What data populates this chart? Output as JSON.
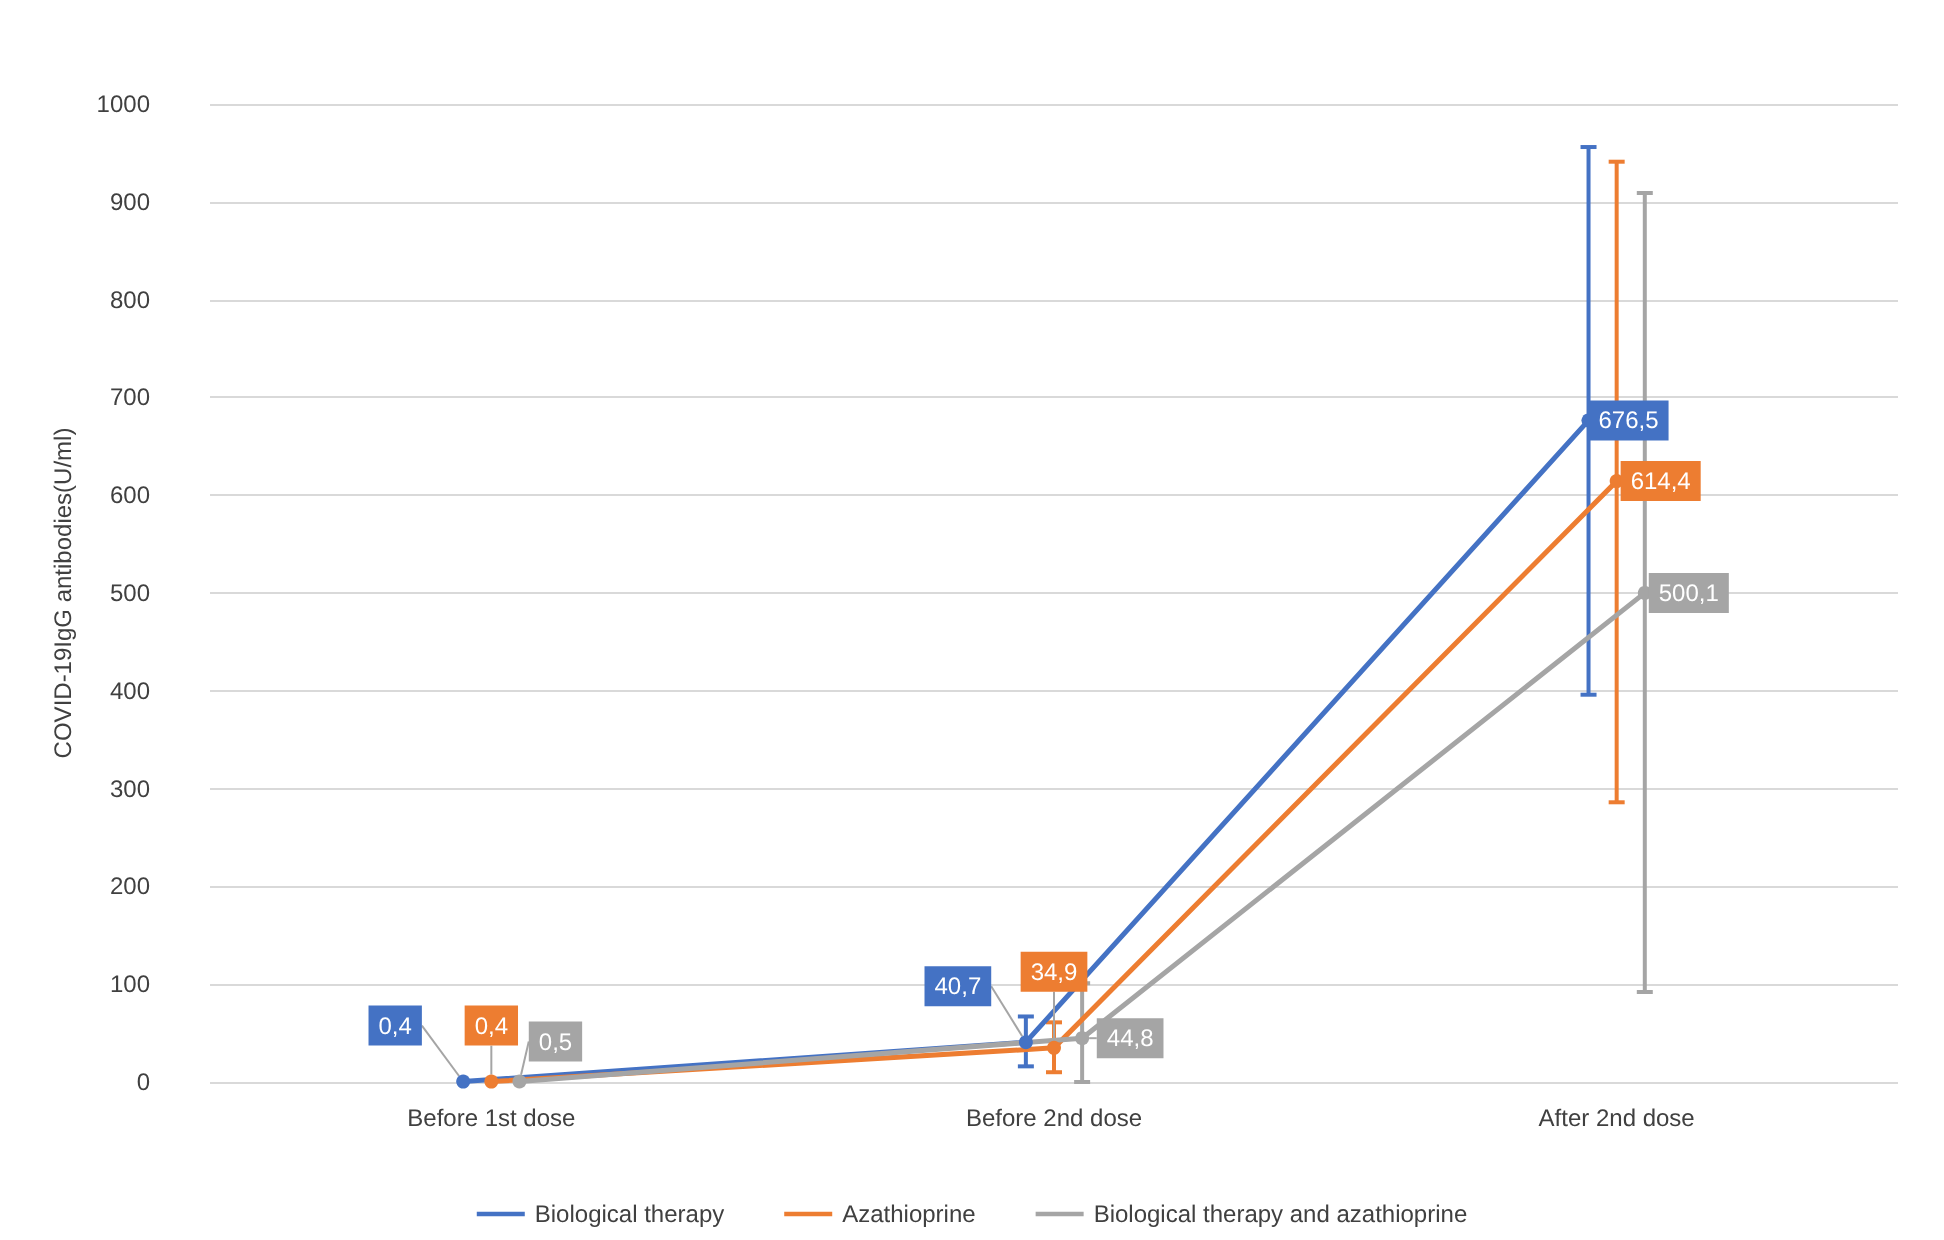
{
  "chart_data": {
    "type": "line",
    "ylabel": "COVID-19IgG antibodies(U/ml)",
    "categories": [
      "Before 1st dose",
      "Before 2nd dose",
      "After 2nd dose"
    ],
    "series": [
      {
        "name": "Biological therapy",
        "color": "#4472c4",
        "values": [
          0.4,
          40.7,
          676.5
        ],
        "value_labels": [
          "0,4",
          "40,7",
          "676,5"
        ],
        "errors": [
          null,
          [
            16,
            67
          ],
          [
            396,
            956
          ]
        ]
      },
      {
        "name": "Azathioprine",
        "color": "#ed7d31",
        "values": [
          0.4,
          34.9,
          614.4
        ],
        "value_labels": [
          "0,4",
          "34,9",
          "614,4"
        ],
        "errors": [
          null,
          [
            10,
            61
          ],
          [
            286,
            941
          ]
        ]
      },
      {
        "name": "Biological therapy and azathioprine",
        "color": "#a5a5a5",
        "values": [
          0.5,
          44.8,
          500.1
        ],
        "value_labels": [
          "0,5",
          "44,8",
          "500,1"
        ],
        "errors": [
          null,
          [
            0,
            101
          ],
          [
            92,
            909
          ]
        ]
      }
    ],
    "ylim": [
      0,
      1000
    ],
    "yticks": [
      0,
      100,
      200,
      300,
      400,
      500,
      600,
      700,
      800,
      900,
      1000
    ],
    "grid": "y",
    "legend": "bottom",
    "marker": "circle",
    "line_style": "solid"
  }
}
